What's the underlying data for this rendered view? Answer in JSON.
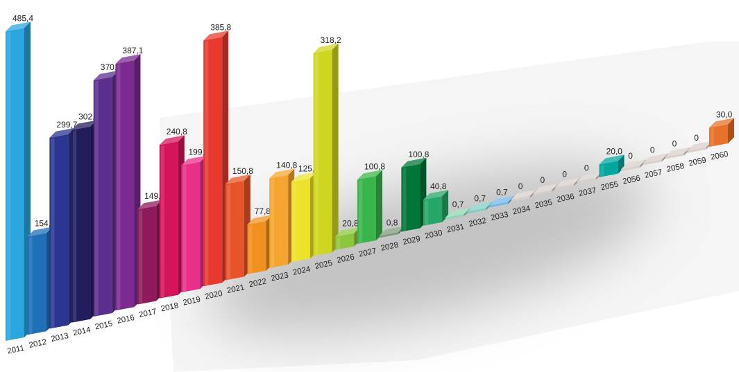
{
  "chart_data": {
    "type": "bar",
    "categories": [
      "2011",
      "2012",
      "2013",
      "2014",
      "2015",
      "2016",
      "2017",
      "2018",
      "2019",
      "2020",
      "2021",
      "2022",
      "2023",
      "2024",
      "2025",
      "2026",
      "2027",
      "2028",
      "2029",
      "2030",
      "2031",
      "2032",
      "2033",
      "2034",
      "2035",
      "2036",
      "2037",
      "2055",
      "2056",
      "2057",
      "2058",
      "2059",
      "2060"
    ],
    "values": [
      485.4,
      154.2,
      299.7,
      302.3,
      370.8,
      387.1,
      149.2,
      240.8,
      199.3,
      385.8,
      150.8,
      77.8,
      140.8,
      125.8,
      318.2,
      20.8,
      100.8,
      0.8,
      100.8,
      40.8,
      0.7,
      0.7,
      0.7,
      0,
      0,
      0,
      0,
      20.0,
      0,
      0,
      0,
      0,
      30.0
    ],
    "value_labels": [
      "485,4",
      "154,2",
      "299,7",
      "302,3",
      "370,8",
      "387,1",
      "149,2",
      "240,8",
      "199,3",
      "385,8",
      "150,8",
      "77,8",
      "140,8",
      "125,8",
      "318,2",
      "20,8",
      "100,8",
      "0,8",
      "100,8",
      "40,8",
      "0,7",
      "0,7",
      "0,7",
      "0",
      "0",
      "0",
      "0",
      "20,0",
      "0",
      "0",
      "0",
      "0",
      "30,0"
    ],
    "colors": [
      "#2aa5de",
      "#1f6fb8",
      "#2b3690",
      "#221e5e",
      "#5c2f8e",
      "#7b2a8f",
      "#8e1a5b",
      "#d4145a",
      "#e8308a",
      "#e8392f",
      "#e8542a",
      "#f0901e",
      "#f5a52f",
      "#ece22b",
      "#cfd620",
      "#8cc63e",
      "#39b54a",
      "#7f9a7c",
      "#00753a",
      "#24a768",
      "#8fd6b0",
      "#7fcfc4",
      "#6fb8e8",
      "#d8cfca",
      "#d8cfca",
      "#d8cfca",
      "#d8cfca",
      "#00a79d",
      "#d8cfca",
      "#d8cfca",
      "#d8cfca",
      "#d8cfca",
      "#e8722a"
    ],
    "title": "",
    "xlabel": "",
    "ylabel": "",
    "ylim": [
      0,
      500
    ],
    "grid": false,
    "legend": "none",
    "style": "3d-perspective"
  }
}
